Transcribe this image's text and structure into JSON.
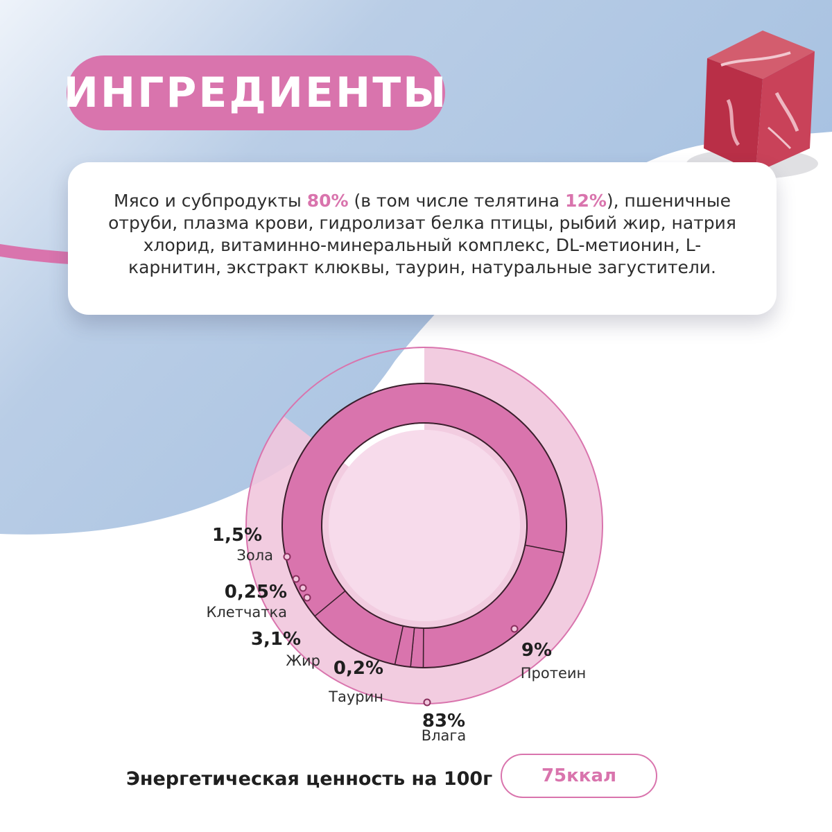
{
  "title": "ИНГРЕДИЕНТЫ",
  "ingredients": {
    "part1": "Мясо и субпродукты ",
    "meat_pct": "80%",
    "part2": " (в том числе телятина ",
    "veal_pct": "12%",
    "part3": "), пшеничные отруби, плазма крови, гидролизат белка птицы, рыбий жир, натрия хлорид, витаминно-минеральный комплекс, DL-метионин, L-карнитин, экстракт клюквы, таурин, натуральные загустители."
  },
  "energy": {
    "label": "Энергетическая ценность на 100г",
    "value": "75ккал"
  },
  "icons": {
    "meat": "meat-cube-image"
  },
  "colors": {
    "pink": "#d974ad",
    "pink_light": "#f1c6dd",
    "pink_pale": "#f7dbeb",
    "blue": "#a7c1e0"
  },
  "chart_data": {
    "type": "pie",
    "categories": [
      "Влага",
      "Протеин",
      "Жир",
      "Таурин",
      "Клетчатка",
      "Зола"
    ],
    "values": [
      83,
      9,
      3.1,
      0.2,
      0.25,
      1.5
    ],
    "labels": [
      "83%",
      "9%",
      "3,1%",
      "0,2%",
      "0,25%",
      "1,5%"
    ],
    "outer_ring": "Влага",
    "inner_ring": [
      "Протеин",
      "Жир",
      "Таурин",
      "Клетчатка",
      "Зола"
    ]
  }
}
